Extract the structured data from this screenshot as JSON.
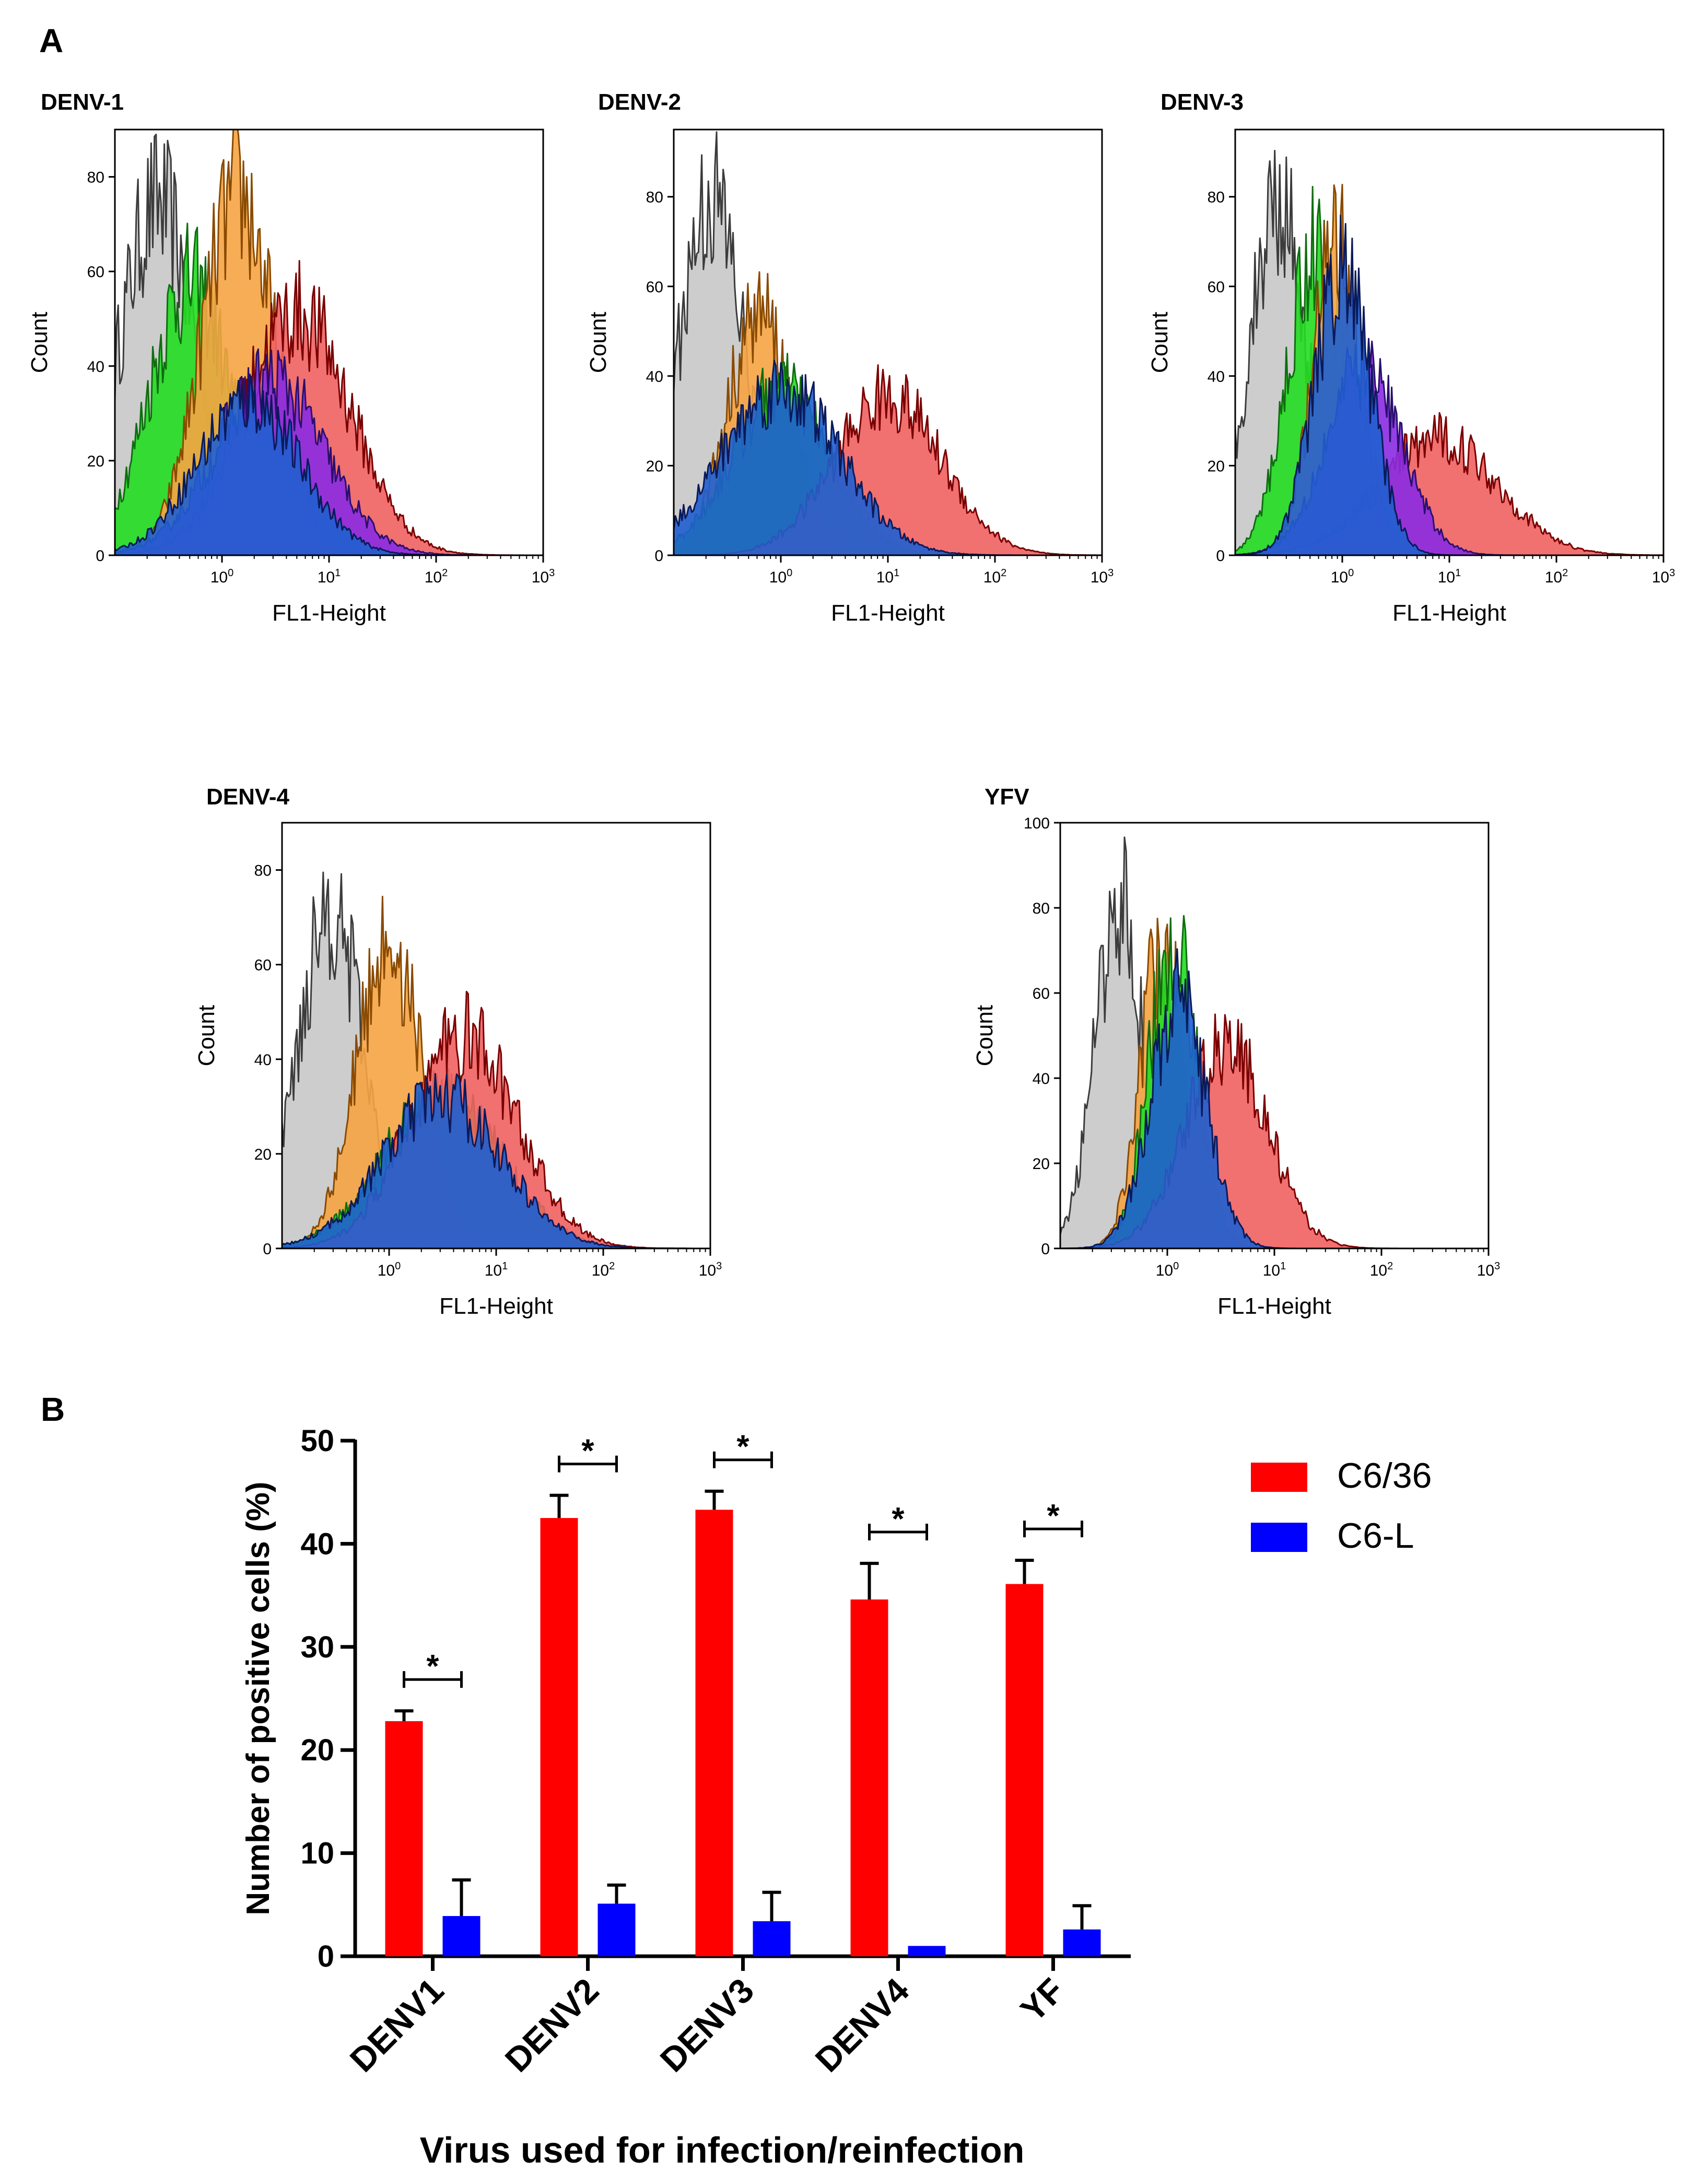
{
  "panel_a_label": "A",
  "panel_b_label": "B",
  "chart_data": [
    {
      "type": "area",
      "title": "DENV-1",
      "xlabel": "FL1-Height",
      "ylabel": "Count",
      "x_scale": "log",
      "xlim": [
        0.1,
        1000
      ],
      "ylim": [
        0,
        90
      ],
      "yticks": [
        0,
        20,
        40,
        60,
        80
      ],
      "xtick_labels": [
        {
          "base": "10",
          "exp": "0"
        },
        {
          "base": "10",
          "exp": "1"
        },
        {
          "base": "10",
          "exp": "2"
        },
        {
          "base": "10",
          "exp": "3"
        }
      ],
      "series": [
        {
          "name": "gray",
          "fill": "#c8c8c8",
          "line": "#3c3c3c",
          "peak_log": -0.6,
          "width": 0.36,
          "height": 80
        },
        {
          "name": "green",
          "fill": "#22dd22",
          "line": "#0f6e0f",
          "peak_log": -0.3,
          "width": 0.38,
          "height": 62
        },
        {
          "name": "orange",
          "fill": "#f5a442",
          "line": "#8a4a00",
          "peak_log": 0.15,
          "width": 0.34,
          "height": 82
        },
        {
          "name": "red",
          "fill": "#f06060",
          "line": "#7a0000",
          "peak_log": 0.7,
          "width": 0.5,
          "height": 55
        },
        {
          "name": "purple",
          "fill": "#8a2be2",
          "line": "#2a0f6e",
          "peak_log": 0.45,
          "width": 0.5,
          "height": 40
        },
        {
          "name": "blue",
          "fill": "#1f5fd0",
          "line": "#0a1a5a",
          "peak_log": 0.25,
          "width": 0.48,
          "height": 35
        }
      ]
    },
    {
      "type": "area",
      "title": "DENV-2",
      "xlabel": "FL1-Height",
      "ylabel": "Count",
      "x_scale": "log",
      "xlim": [
        0.1,
        1000
      ],
      "ylim": [
        0,
        95
      ],
      "yticks": [
        0,
        20,
        40,
        60,
        80
      ],
      "xtick_labels": [
        {
          "base": "10",
          "exp": "0"
        },
        {
          "base": "10",
          "exp": "1"
        },
        {
          "base": "10",
          "exp": "2"
        },
        {
          "base": "10",
          "exp": "3"
        }
      ],
      "series": [
        {
          "name": "gray",
          "fill": "#c8c8c8",
          "line": "#3c3c3c",
          "peak_log": -0.65,
          "width": 0.3,
          "height": 86
        },
        {
          "name": "orange",
          "fill": "#f5a442",
          "line": "#8a4a00",
          "peak_log": -0.2,
          "width": 0.3,
          "height": 58
        },
        {
          "name": "green",
          "fill": "#22dd22",
          "line": "#0f6e0f",
          "peak_log": 0.0,
          "width": 0.45,
          "height": 40
        },
        {
          "name": "red",
          "fill": "#f06060",
          "line": "#7a0000",
          "peak_log": 1.0,
          "width": 0.5,
          "height": 38
        },
        {
          "name": "blue",
          "fill": "#1f5fd0",
          "line": "#0a1a5a",
          "peak_log": 0.0,
          "width": 0.55,
          "height": 40
        }
      ]
    },
    {
      "type": "area",
      "title": "DENV-3",
      "xlabel": "FL1-Height",
      "ylabel": "Count",
      "x_scale": "log",
      "xlim": [
        0.1,
        1000
      ],
      "ylim": [
        0,
        95
      ],
      "yticks": [
        0,
        20,
        40,
        60,
        80
      ],
      "xtick_labels": [
        {
          "base": "10",
          "exp": "0"
        },
        {
          "base": "10",
          "exp": "1"
        },
        {
          "base": "10",
          "exp": "2"
        },
        {
          "base": "10",
          "exp": "3"
        }
      ],
      "series": [
        {
          "name": "gray",
          "fill": "#c8c8c8",
          "line": "#3c3c3c",
          "peak_log": -0.6,
          "width": 0.26,
          "height": 86
        },
        {
          "name": "green",
          "fill": "#22dd22",
          "line": "#0f6e0f",
          "peak_log": -0.25,
          "width": 0.26,
          "height": 74
        },
        {
          "name": "orange",
          "fill": "#f5a442",
          "line": "#8a4a00",
          "peak_log": -0.05,
          "width": 0.22,
          "height": 76
        },
        {
          "name": "red",
          "fill": "#f06060",
          "line": "#7a0000",
          "peak_log": 0.9,
          "width": 0.55,
          "height": 28
        },
        {
          "name": "purple",
          "fill": "#8a2be2",
          "line": "#2a0f6e",
          "peak_log": 0.2,
          "width": 0.35,
          "height": 45
        },
        {
          "name": "blue",
          "fill": "#1f5fd0",
          "line": "#0a1a5a",
          "peak_log": 0.0,
          "width": 0.26,
          "height": 68
        }
      ]
    },
    {
      "type": "area",
      "title": "DENV-4",
      "xlabel": "FL1-Height",
      "ylabel": "Count",
      "x_scale": "log",
      "xlim": [
        0.1,
        1000
      ],
      "ylim": [
        0,
        90
      ],
      "yticks": [
        0,
        20,
        40,
        60,
        80
      ],
      "xtick_labels": [
        {
          "base": "10",
          "exp": "0"
        },
        {
          "base": "10",
          "exp": "1"
        },
        {
          "base": "10",
          "exp": "2"
        },
        {
          "base": "10",
          "exp": "3"
        }
      ],
      "series": [
        {
          "name": "gray",
          "fill": "#c8c8c8",
          "line": "#3c3c3c",
          "peak_log": -0.55,
          "width": 0.3,
          "height": 78
        },
        {
          "name": "orange",
          "fill": "#f5a442",
          "line": "#8a4a00",
          "peak_log": 0.0,
          "width": 0.3,
          "height": 70
        },
        {
          "name": "green",
          "fill": "#22dd22",
          "line": "#0f6e0f",
          "peak_log": 0.5,
          "width": 0.55,
          "height": 34
        },
        {
          "name": "red",
          "fill": "#f06060",
          "line": "#7a0000",
          "peak_log": 0.7,
          "width": 0.5,
          "height": 48
        },
        {
          "name": "blue",
          "fill": "#1f5fd0",
          "line": "#0a1a5a",
          "peak_log": 0.5,
          "width": 0.55,
          "height": 34
        }
      ]
    },
    {
      "type": "area",
      "title": "YFV",
      "xlabel": "FL1-Height",
      "ylabel": "Count",
      "x_scale": "log",
      "xlim": [
        0.1,
        1000
      ],
      "ylim": [
        0,
        100
      ],
      "yticks": [
        0,
        20,
        40,
        60,
        80,
        100
      ],
      "xtick_labels": [
        {
          "base": "10",
          "exp": "0"
        },
        {
          "base": "10",
          "exp": "1"
        },
        {
          "base": "10",
          "exp": "2"
        },
        {
          "base": "10",
          "exp": "3"
        }
      ],
      "series": [
        {
          "name": "gray",
          "fill": "#c8c8c8",
          "line": "#3c3c3c",
          "peak_log": -0.45,
          "width": 0.22,
          "height": 88
        },
        {
          "name": "orange",
          "fill": "#f5a442",
          "line": "#8a4a00",
          "peak_log": -0.05,
          "width": 0.2,
          "height": 78
        },
        {
          "name": "green",
          "fill": "#22dd22",
          "line": "#0f6e0f",
          "peak_log": 0.05,
          "width": 0.22,
          "height": 78
        },
        {
          "name": "red",
          "fill": "#f06060",
          "line": "#7a0000",
          "peak_log": 0.55,
          "width": 0.38,
          "height": 52
        },
        {
          "name": "blue",
          "fill": "#1f5fd0",
          "line": "#0a1a5a",
          "peak_log": 0.1,
          "width": 0.26,
          "height": 62
        }
      ]
    },
    {
      "type": "bar",
      "title": "",
      "xlabel": "Virus used for infection/reinfection",
      "ylabel": "Number of positive cells (%)",
      "categories": [
        "DENV1",
        "DENV2",
        "DENV3",
        "DENV4",
        "YF"
      ],
      "ylim": [
        0,
        50
      ],
      "yticks": [
        0,
        10,
        20,
        30,
        40,
        50
      ],
      "significance": [
        "*",
        "*",
        "*",
        "*",
        "*"
      ],
      "series": [
        {
          "name": "C6/36",
          "color": "#ff0000",
          "values": [
            22.8,
            42.5,
            43.3,
            34.6,
            36.1
          ],
          "errors": [
            1.0,
            2.2,
            1.8,
            3.5,
            2.3
          ]
        },
        {
          "name": "C6-L",
          "color": "#0000ff",
          "values": [
            3.9,
            5.1,
            3.4,
            1.0,
            2.6
          ],
          "errors": [
            3.5,
            1.8,
            2.8,
            0.0,
            2.3
          ]
        }
      ],
      "legend_position": "top-right"
    }
  ]
}
